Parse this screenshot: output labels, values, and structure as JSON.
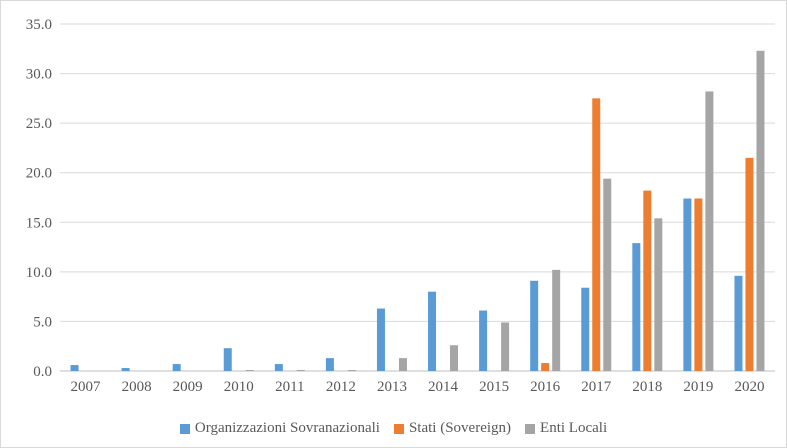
{
  "chart_data": {
    "type": "bar",
    "categories": [
      "2007",
      "2008",
      "2009",
      "2010",
      "2011",
      "2012",
      "2013",
      "2014",
      "2015",
      "2016",
      "2017",
      "2018",
      "2019",
      "2020"
    ],
    "series": [
      {
        "name": "Organizzazioni Sovranazionali",
        "color": "#5b9bd5",
        "values": [
          0.6,
          0.3,
          0.7,
          2.3,
          0.7,
          1.3,
          6.3,
          8.0,
          6.1,
          9.1,
          8.4,
          12.9,
          17.4,
          9.6
        ]
      },
      {
        "name": "Stati (Sovereign)",
        "color": "#ed7d31",
        "values": [
          0,
          0,
          0,
          0,
          0,
          0,
          0,
          0,
          0,
          0.8,
          27.5,
          18.2,
          17.4,
          21.5
        ]
      },
      {
        "name": "Enti Locali",
        "color": "#a5a5a5",
        "values": [
          0,
          0,
          0,
          0.1,
          0.1,
          0.1,
          1.3,
          2.6,
          4.9,
          10.2,
          19.4,
          15.4,
          28.2,
          32.3
        ]
      }
    ],
    "ylim": [
      0,
      35
    ],
    "yticks": [
      "0.0",
      "5.0",
      "10.0",
      "15.0",
      "20.0",
      "25.0",
      "30.0",
      "35.0"
    ],
    "grid": true,
    "legend": "bottom",
    "title": "",
    "xlabel": "",
    "ylabel": ""
  }
}
